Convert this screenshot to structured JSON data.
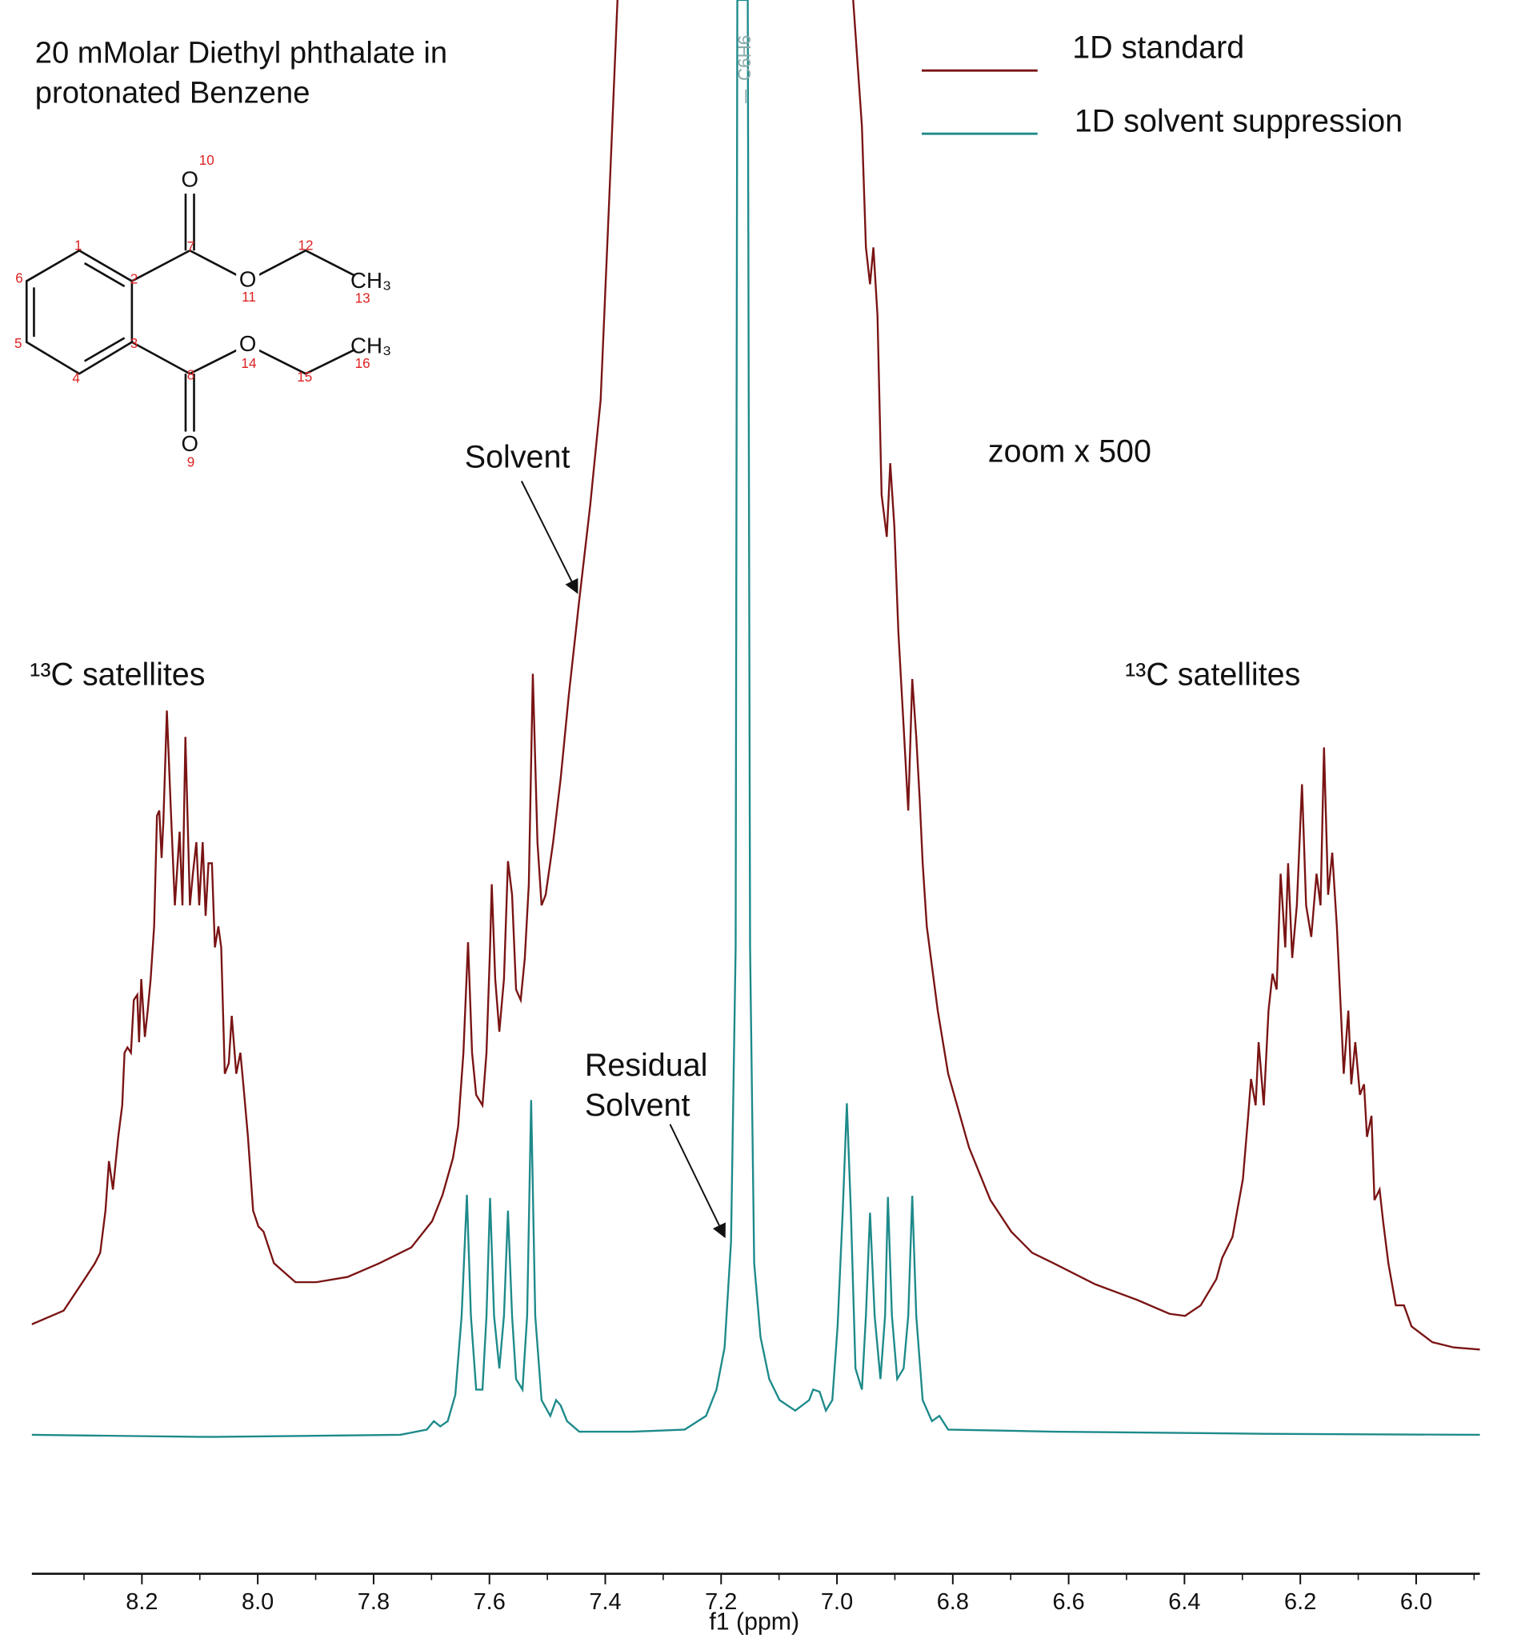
{
  "chart_data": {
    "type": "line",
    "title": [
      "20 mMolar Diethyl phthalate in",
      "protonated Benzene"
    ],
    "xlabel": "f1 (ppm)",
    "xlim": [
      8.39,
      5.89
    ],
    "ylim": [
      -130,
      1365
    ],
    "xticks": [
      8.2,
      {
        "value": 8,
        "label": "8.0"
      },
      7.8,
      7.6,
      7.4,
      7.2,
      {
        "value": 7,
        "label": "7.0"
      },
      6.8,
      6.6,
      6.4,
      6.2,
      {
        "value": 6,
        "label": "6.0"
      }
    ],
    "xminorticks": [
      8.3,
      8.1,
      7.9,
      7.7,
      7.5,
      7.3,
      7.1,
      6.9,
      6.7,
      6.5,
      6.3,
      6.1,
      5.9
    ],
    "legend": "upper right",
    "annotations": [
      "Solvent",
      [
        "Residual",
        "Solvent"
      ],
      "zoom x 500",
      "¹³C satellites",
      "¹³C satellites",
      "C6H6"
    ],
    "structure": {
      "atoms": [
        "O",
        "O",
        "CH₃",
        "O",
        "CH₃",
        "O"
      ],
      "numbers": [
        "10",
        "1",
        "7",
        "12",
        "6",
        "2",
        "11",
        "13",
        "5",
        "3",
        "14",
        "16",
        "4",
        "8",
        "15",
        "9"
      ]
    },
    "series": [
      {
        "name": "1D standard",
        "color": "#7a1414",
        "x": [
          8.39,
          8.335,
          8.299,
          8.281,
          8.272,
          8.263,
          8.257,
          8.25,
          8.241,
          8.234,
          8.23,
          8.225,
          8.219,
          8.214,
          8.208,
          8.205,
          8.201,
          8.195,
          8.19,
          8.185,
          8.179,
          8.174,
          8.17,
          8.166,
          8.163,
          8.157,
          8.15,
          8.143,
          8.135,
          8.13,
          8.125,
          8.117,
          8.112,
          8.106,
          8.101,
          8.095,
          8.09,
          8.085,
          8.079,
          8.074,
          8.068,
          8.063,
          8.057,
          8.05,
          8.045,
          8.037,
          8.03,
          8.025,
          8.017,
          8.008,
          7.999,
          7.99,
          7.972,
          7.935,
          7.899,
          7.845,
          7.79,
          7.735,
          7.699,
          7.681,
          7.663,
          7.654,
          7.645,
          7.637,
          7.63,
          7.623,
          7.612,
          7.605,
          7.599,
          7.596,
          7.59,
          7.583,
          7.575,
          7.568,
          7.561,
          7.554,
          7.546,
          7.539,
          7.532,
          7.525,
          7.517,
          7.51,
          7.503,
          7.49,
          7.477,
          7.463,
          7.445,
          7.426,
          7.408,
          7.394,
          7.379,
          7.17,
          6.972,
          6.957,
          6.95,
          6.943,
          6.937,
          6.93,
          6.923,
          6.914,
          6.908,
          6.901,
          6.894,
          6.885,
          6.877,
          6.87,
          6.863,
          6.857,
          6.852,
          6.845,
          6.826,
          6.808,
          6.772,
          6.735,
          6.699,
          6.663,
          6.626,
          6.554,
          6.481,
          6.426,
          6.399,
          6.372,
          6.345,
          6.335,
          6.317,
          6.299,
          6.29,
          6.285,
          6.277,
          6.272,
          6.263,
          6.255,
          6.248,
          6.241,
          6.234,
          6.226,
          6.221,
          6.214,
          6.206,
          6.197,
          6.19,
          6.181,
          6.172,
          6.165,
          6.159,
          6.152,
          6.145,
          6.137,
          6.13,
          6.125,
          6.117,
          6.112,
          6.105,
          6.097,
          6.09,
          6.085,
          6.077,
          6.072,
          6.063,
          6.057,
          6.048,
          6.035,
          6.021,
          6.008,
          5.972,
          5.935,
          5.89
        ],
        "values": [
          107,
          120,
          150,
          165,
          175,
          215,
          262,
          235,
          285,
          315,
          365,
          370,
          365,
          415,
          420,
          375,
          435,
          380,
          405,
          435,
          485,
          590,
          595,
          550,
          585,
          690,
          595,
          505,
          575,
          505,
          665,
          505,
          535,
          565,
          505,
          565,
          495,
          545,
          545,
          465,
          485,
          465,
          345,
          355,
          400,
          345,
          365,
          335,
          285,
          215,
          200,
          195,
          165,
          147,
          147,
          152,
          165,
          180,
          205,
          230,
          265,
          295,
          365,
          470,
          365,
          325,
          315,
          365,
          465,
          525,
          435,
          385,
          435,
          547,
          515,
          425,
          415,
          455,
          525,
          725,
          565,
          505,
          515,
          565,
          625,
          705,
          795,
          885,
          985,
          1165,
          1365,
          null,
          1365,
          1245,
          1130,
          1095,
          1130,
          1065,
          895,
          855,
          925,
          865,
          765,
          675,
          595,
          720,
          665,
          605,
          545,
          485,
          405,
          345,
          275,
          225,
          195,
          175,
          165,
          145,
          130,
          117,
          115,
          125,
          150,
          170,
          190,
          245,
          305,
          340,
          315,
          375,
          315,
          405,
          440,
          425,
          535,
          465,
          545,
          455,
          505,
          620,
          505,
          475,
          535,
          505,
          655,
          515,
          555,
          485,
          405,
          345,
          405,
          335,
          375,
          325,
          335,
          285,
          305,
          225,
          235,
          205,
          165,
          125,
          125,
          105,
          90,
          85,
          83
        ]
      },
      {
        "name": "1D solvent suppression",
        "color": "#1e8a8a",
        "x": [
          8.39,
          8.081,
          7.754,
          7.708,
          7.696,
          7.685,
          7.672,
          7.659,
          7.648,
          7.639,
          7.632,
          7.623,
          7.612,
          7.605,
          7.599,
          7.592,
          7.583,
          7.575,
          7.568,
          7.561,
          7.554,
          7.543,
          7.535,
          7.528,
          7.521,
          7.51,
          7.495,
          7.485,
          7.477,
          7.466,
          7.445,
          7.354,
          7.263,
          7.226,
          7.208,
          7.194,
          7.183,
          7.175,
          7.172,
          7.154,
          7.15,
          7.143,
          7.132,
          7.117,
          7.099,
          7.072,
          7.048,
          7.041,
          7.03,
          7.019,
          7.008,
          6.999,
          6.99,
          6.983,
          6.976,
          6.968,
          6.957,
          6.95,
          6.943,
          6.935,
          6.925,
          6.917,
          6.912,
          6.905,
          6.896,
          6.885,
          6.877,
          6.87,
          6.863,
          6.852,
          6.836,
          6.823,
          6.808,
          6.626,
          6.263,
          5.89
        ],
        "values": [
          2,
          0,
          2,
          7,
          15,
          10,
          15,
          40,
          115,
          230,
          115,
          45,
          45,
          115,
          227,
          115,
          65,
          115,
          215,
          115,
          55,
          45,
          115,
          320,
          115,
          35,
          20,
          35,
          30,
          15,
          5,
          5,
          7,
          20,
          45,
          85,
          185,
          465,
          1365,
          1365,
          465,
          165,
          95,
          55,
          35,
          25,
          35,
          45,
          43,
          25,
          35,
          105,
          215,
          317,
          215,
          65,
          45,
          115,
          213,
          115,
          55,
          115,
          228,
          115,
          55,
          65,
          115,
          229,
          115,
          35,
          15,
          20,
          7,
          5,
          3,
          2
        ]
      }
    ]
  }
}
